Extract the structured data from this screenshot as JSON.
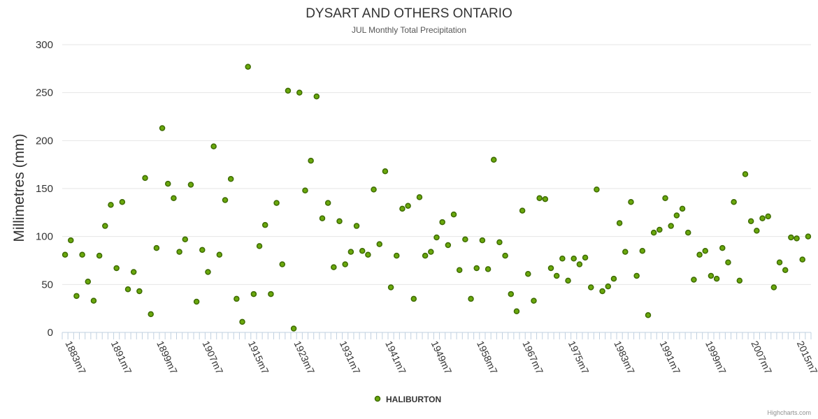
{
  "chart_data": {
    "type": "scatter",
    "title": "DYSART AND OTHERS ONTARIO",
    "subtitle": "JUL Monthly Total Precipitation",
    "xlabel": "",
    "ylabel": "Millimetres (mm)",
    "ylim": [
      0,
      300
    ],
    "yticks": [
      0,
      50,
      100,
      150,
      200,
      250,
      300
    ],
    "grid": true,
    "legend_position": "bottom-center",
    "x_labels": [
      "1883m7",
      "1891m7",
      "1899m7",
      "1907m7",
      "1915m7",
      "1923m7",
      "1931m7",
      "1941m7",
      "1949m7",
      "1958m7",
      "1967m7",
      "1975m7",
      "1983m7",
      "1991m7",
      "1999m7",
      "2007m7",
      "2015m7"
    ],
    "x_label_indices": [
      0,
      8,
      16,
      24,
      32,
      40,
      48,
      56,
      64,
      72,
      80,
      88,
      96,
      104,
      112,
      120,
      128
    ],
    "series": [
      {
        "name": "HALIBURTON",
        "color": "#6aa80c",
        "outline": "#3d6b00",
        "values": [
          81,
          96,
          38,
          81,
          53,
          33,
          80,
          111,
          133,
          67,
          136,
          45,
          63,
          43,
          161,
          19,
          88,
          213,
          155,
          140,
          84,
          97,
          154,
          32,
          86,
          63,
          194,
          81,
          138,
          160,
          35,
          11,
          277,
          40,
          90,
          112,
          40,
          135,
          71,
          252,
          4,
          250,
          148,
          179,
          246,
          119,
          135,
          68,
          116,
          71,
          84,
          111,
          85,
          81,
          149,
          92,
          168,
          47,
          80,
          129,
          132,
          35,
          141,
          80,
          84,
          99,
          115,
          91,
          123,
          65,
          97,
          35,
          67,
          96,
          66,
          180,
          94,
          80,
          40,
          22,
          127,
          61,
          33,
          140,
          139,
          67,
          59,
          77,
          54,
          77,
          71,
          78,
          47,
          149,
          43,
          48,
          56,
          114,
          84,
          136,
          59,
          85,
          18,
          104,
          107,
          140,
          111,
          122,
          129,
          104,
          55,
          81,
          85,
          59,
          56,
          88,
          73,
          136,
          54,
          165,
          116,
          106,
          119,
          121,
          47,
          73,
          65,
          99,
          98,
          76,
          100
        ]
      }
    ]
  },
  "credits": "Highcharts.com"
}
